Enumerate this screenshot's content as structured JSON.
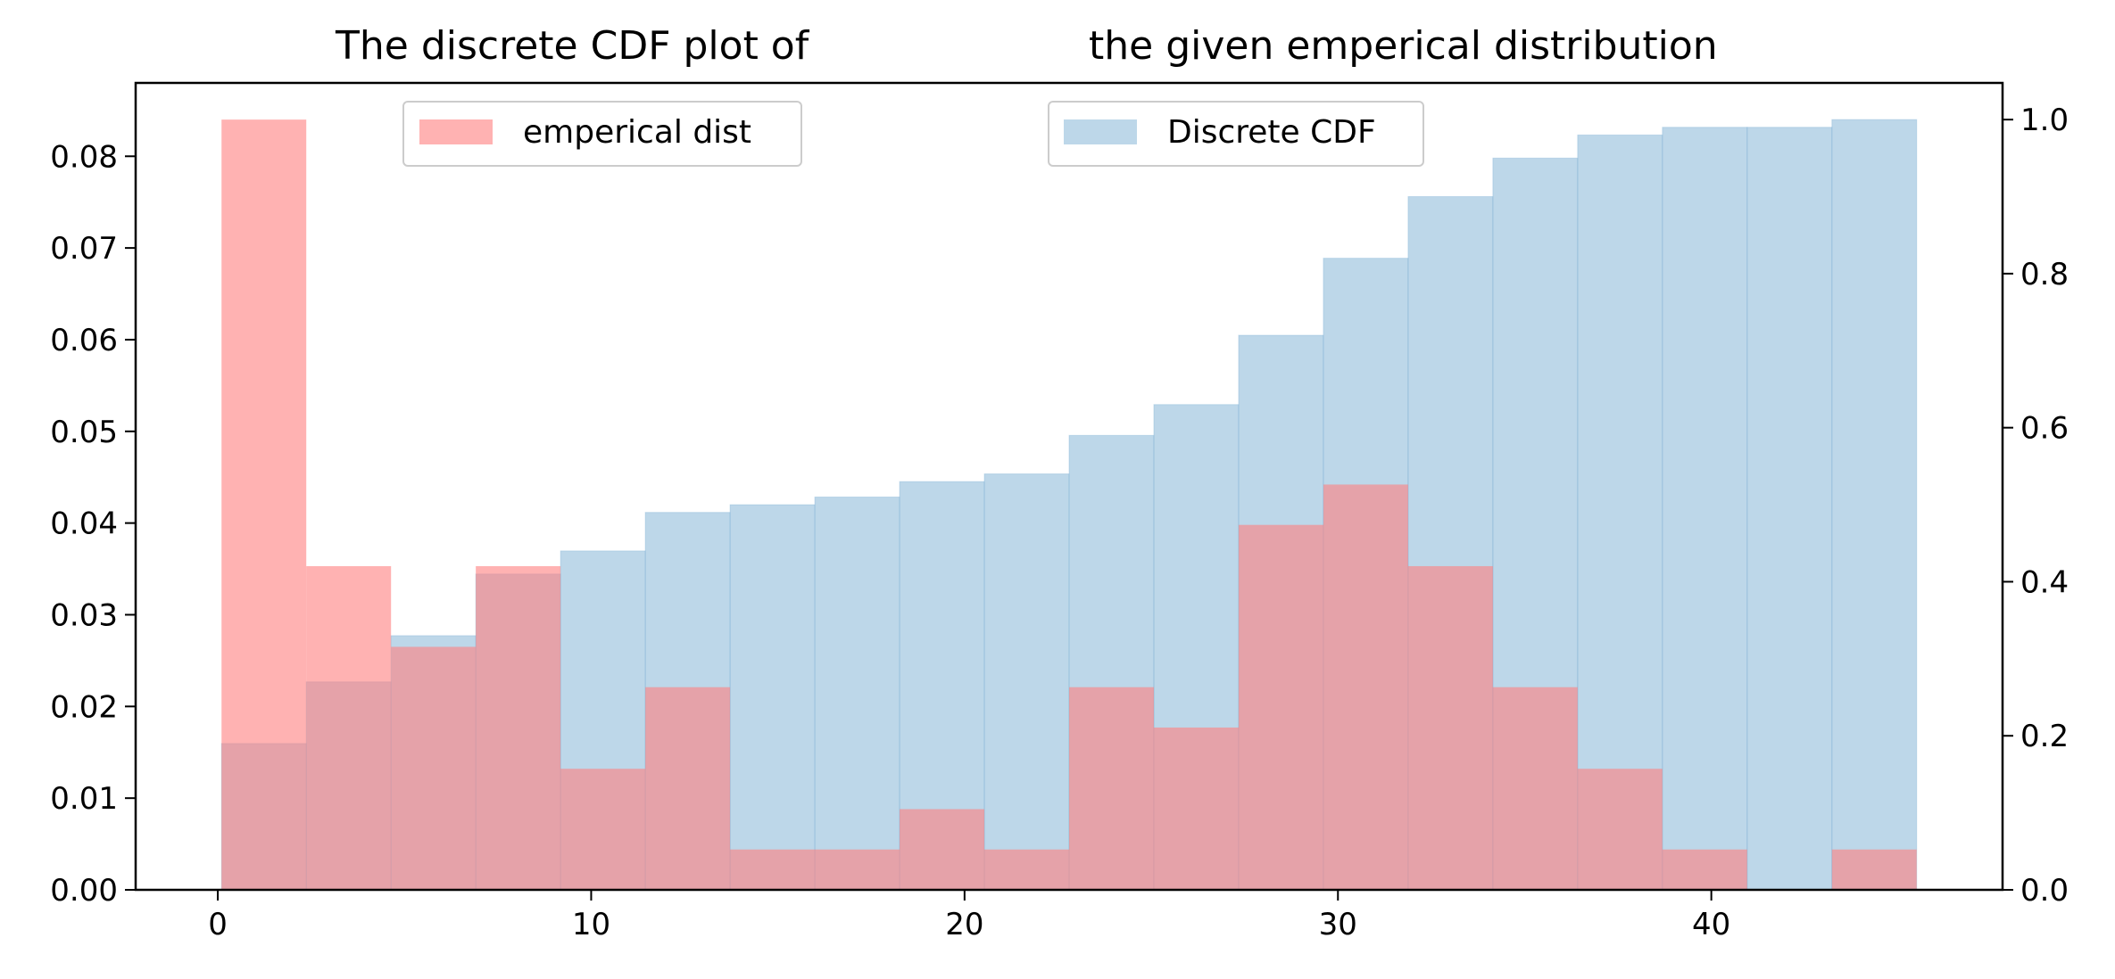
{
  "chart_data": {
    "type": "bar",
    "title_left": "The discrete CDF plot of",
    "title_right": "the given emperical distribution",
    "bin_edges": [
      0.1,
      2.37,
      4.64,
      6.91,
      9.18,
      11.45,
      13.72,
      15.99,
      18.26,
      20.53,
      22.8,
      25.07,
      27.34,
      29.61,
      31.88,
      34.15,
      36.42,
      38.69,
      40.96,
      43.23,
      45.5
    ],
    "x_axis": {
      "range": [
        -2.2,
        47.8
      ],
      "ticks": [
        0,
        10,
        20,
        30,
        40
      ]
    },
    "y_left": {
      "range": [
        0,
        0.088
      ],
      "ticks": [
        0.0,
        0.01,
        0.02,
        0.03,
        0.04,
        0.05,
        0.06,
        0.07,
        0.08
      ]
    },
    "y_right": {
      "range": [
        0,
        1.0476
      ],
      "ticks": [
        0.0,
        0.2,
        0.4,
        0.6,
        0.8,
        1.0
      ]
    },
    "series": [
      {
        "name": "emperical dist",
        "axis": "left",
        "color": "#ff7f7f",
        "values": [
          0.084,
          0.0353,
          0.0265,
          0.0353,
          0.0132,
          0.0221,
          0.0044,
          0.0044,
          0.0088,
          0.0044,
          0.0221,
          0.0177,
          0.0398,
          0.0442,
          0.0353,
          0.0221,
          0.0132,
          0.0044,
          0.0,
          0.0044
        ]
      },
      {
        "name": "Discrete CDF",
        "axis": "right",
        "color": "#7bafd4",
        "values": [
          0.19,
          0.27,
          0.33,
          0.41,
          0.44,
          0.49,
          0.5,
          0.51,
          0.53,
          0.54,
          0.59,
          0.63,
          0.72,
          0.82,
          0.9,
          0.95,
          0.98,
          0.99,
          0.99,
          1.0
        ]
      }
    ],
    "legends": [
      {
        "series": 0,
        "position": "upper-left"
      },
      {
        "series": 1,
        "position": "upper-center"
      }
    ]
  }
}
